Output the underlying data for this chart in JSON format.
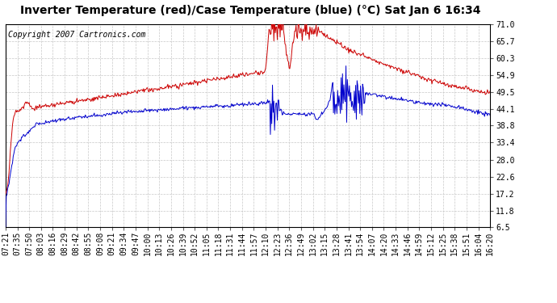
{
  "title": "Inverter Temperature (red)/Case Temperature (blue) (°C) Sat Jan 6 16:34",
  "copyright": "Copyright 2007 Cartronics.com",
  "yticks": [
    6.5,
    11.8,
    17.2,
    22.6,
    28.0,
    33.4,
    38.8,
    44.1,
    49.5,
    54.9,
    60.3,
    65.7,
    71.0
  ],
  "xtick_labels": [
    "07:21",
    "07:35",
    "07:50",
    "08:03",
    "08:16",
    "08:29",
    "08:42",
    "08:55",
    "09:08",
    "09:21",
    "09:34",
    "09:47",
    "10:00",
    "10:13",
    "10:26",
    "10:39",
    "10:52",
    "11:05",
    "11:18",
    "11:31",
    "11:44",
    "11:57",
    "12:10",
    "12:23",
    "12:36",
    "12:49",
    "13:02",
    "13:15",
    "13:28",
    "13:41",
    "13:54",
    "14:07",
    "14:20",
    "14:33",
    "14:46",
    "14:59",
    "15:12",
    "15:25",
    "15:38",
    "15:51",
    "16:04",
    "16:20"
  ],
  "ymin": 6.5,
  "ymax": 71.0,
  "red_color": "#cc0000",
  "blue_color": "#0000cc",
  "bg_color": "#ffffff",
  "plot_bg_color": "#ffffff",
  "grid_color": "#c8c8c8",
  "title_fontsize": 10,
  "tick_fontsize": 7,
  "copyright_fontsize": 7
}
